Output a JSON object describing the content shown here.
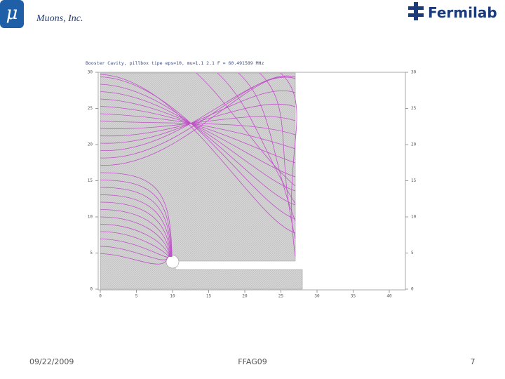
{
  "header": {
    "company": "Muons, Inc.",
    "logo_symbol": "μ",
    "lab": "Fermilab"
  },
  "figure": {
    "title": "Booster Cavity, pillbox tipe eps=10, mu=1.1 2.1  F = 60.491589 MHz",
    "xlim": [
      0,
      40
    ],
    "ylim": [
      0,
      30
    ],
    "xticks": [
      0,
      5,
      10,
      15,
      20,
      25,
      30,
      35,
      40
    ],
    "yticks": [
      0,
      5,
      10,
      15,
      20,
      25,
      30
    ]
  },
  "footer": {
    "date": "09/22/2009",
    "event": "FFAG09",
    "page": "7"
  }
}
